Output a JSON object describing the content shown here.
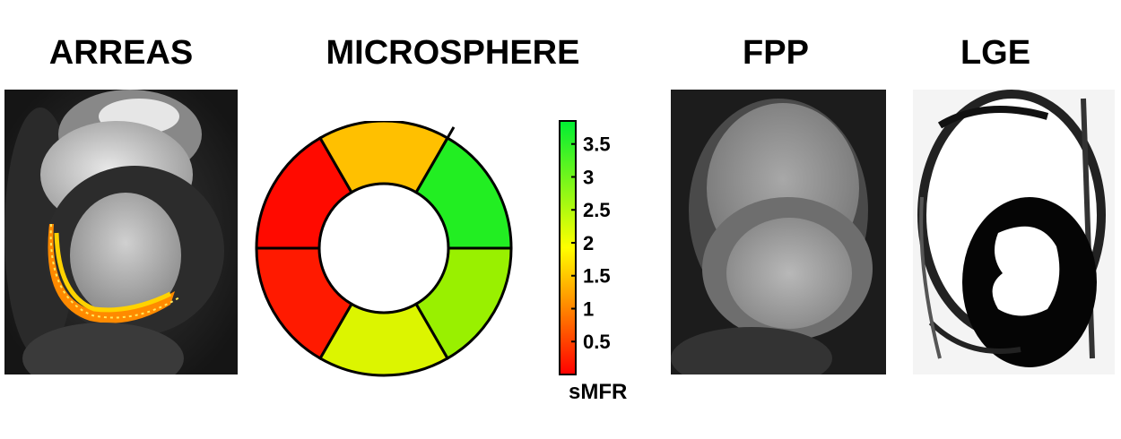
{
  "panels": {
    "arreas": {
      "title": "ARREAS"
    },
    "microsphere": {
      "title": "MICROSPHERE"
    },
    "fpp": {
      "title": "FPP"
    },
    "lge": {
      "title": "LGE"
    }
  },
  "bullseye": {
    "segments": [
      {
        "value": 3.7,
        "color": "#22ee22"
      },
      {
        "value": 3.1,
        "color": "#99f000"
      },
      {
        "value": 2.6,
        "color": "#dcf500"
      },
      {
        "value": 0.3,
        "color": "#ff1a00"
      },
      {
        "value": 0.2,
        "color": "#ff0a00"
      },
      {
        "value": 1.7,
        "color": "#ffc000"
      }
    ]
  },
  "colorbar": {
    "label": "sMFR",
    "ticks": [
      "3.5",
      "3",
      "2.5",
      "2",
      "1.5",
      "1",
      "0.5"
    ],
    "range": [
      0,
      3.85
    ],
    "colors": {
      "bottom": "#ff0000",
      "middle": "#ffff00",
      "top": "#00ee33"
    }
  }
}
